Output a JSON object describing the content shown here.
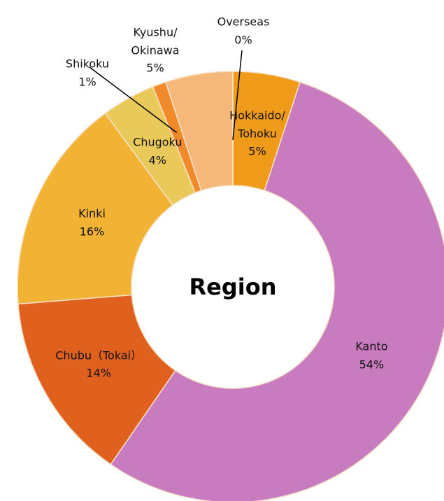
{
  "chart_data": {
    "type": "donut",
    "title": "Region",
    "categories": [
      "Hokkaido/\nTohoku",
      "Kanto",
      "Chubu（Tokai）",
      "Kinki",
      "Chugoku",
      "Shikoku",
      "Kyushu/\nOkinawa",
      "Overseas"
    ],
    "values": [
      5,
      54,
      14,
      16,
      4,
      1,
      5,
      0
    ],
    "value_labels": [
      "5%",
      "54%",
      "14%",
      "16%",
      "4%",
      "1%",
      "5%",
      "0%"
    ],
    "colors": [
      "#f09a1a",
      "#c97bbf",
      "#e0601e",
      "#f2b234",
      "#e8c95a",
      "#f08a2a",
      "#f6b77a",
      "#d9a040"
    ]
  }
}
